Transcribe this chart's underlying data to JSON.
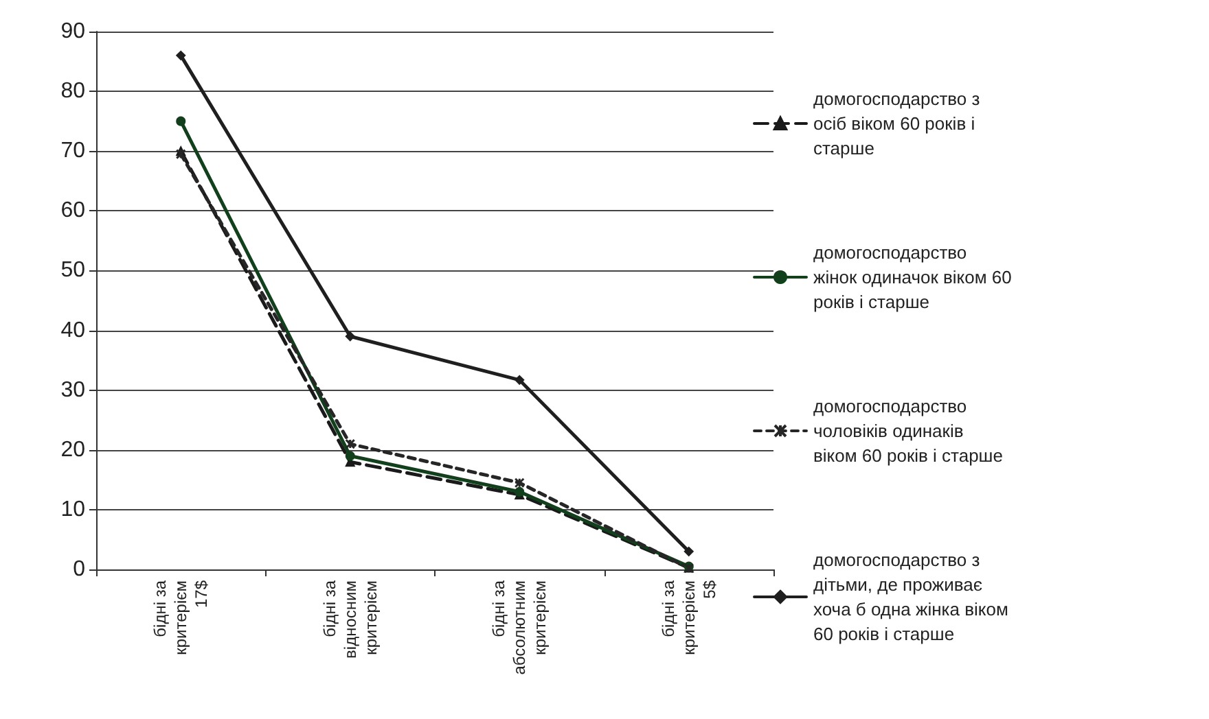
{
  "chart_data": {
    "type": "line",
    "categories": [
      "бідні за критерієм 17$",
      "бідні за відносним критерієм",
      "бідні за абсолютним критерієм",
      "бідні за критерієм 5$"
    ],
    "series": [
      {
        "name": "домогосподарство з осіб віком 60 років і старше",
        "color": "#1a1a1a",
        "marker": "triangle",
        "line_style": "dashed",
        "values": [
          70,
          18,
          12.5,
          0.3
        ]
      },
      {
        "name": "домогосподарство жінок одиначок віком 60 років і старше",
        "color": "#123f1c",
        "marker": "circle",
        "line_style": "solid",
        "values": [
          75,
          19,
          13,
          0.5
        ]
      },
      {
        "name": "домогосподарство чоловіків одинаків віком 60 років і старше",
        "color": "#262626",
        "marker": "cross",
        "line_style": "dotted",
        "values": [
          69.5,
          21,
          14.5,
          0.2
        ]
      },
      {
        "name": "домогосподарство з дітьми, де проживає хоча б одна жінка віком 60 років і старше",
        "color": "#1f1f1f",
        "marker": "diamond",
        "line_style": "solid",
        "values": [
          86,
          39,
          31.7,
          3
        ]
      }
    ],
    "ylim": [
      0,
      90
    ],
    "yticks": [
      0,
      10,
      20,
      30,
      40,
      50,
      60,
      70,
      80,
      90
    ],
    "grid": "y",
    "legend": "right"
  }
}
